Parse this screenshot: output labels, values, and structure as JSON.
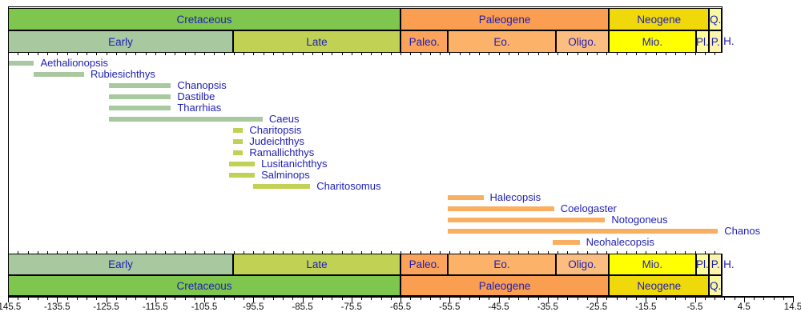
{
  "figure": {
    "background": "#FFFFFF",
    "text_color": "#1E1EB4",
    "axis_color": "#000000",
    "unit": "Ma"
  },
  "chart_data": {
    "type": "bar",
    "subtype": "horizontal-taxon-range-timeline",
    "grid": false,
    "legend": false,
    "x_axis": {
      "min": -145.5,
      "max": 14.5,
      "major_tick_step": 10,
      "minor_tick_step": 2,
      "tick_labels": [
        "-145.5",
        "-135.5",
        "-125.5",
        "-115.5",
        "-105.5",
        "-95.5",
        "-85.5",
        "-75.5",
        "-65.5",
        "-55.5",
        "-45.5",
        "-35.5",
        "-25.5",
        "-15.5",
        "-5.5",
        "4.5",
        "14.5"
      ]
    },
    "periods": [
      {
        "label": "Cretaceous",
        "start": -145.5,
        "end": -65.5,
        "color": "#7FC64E"
      },
      {
        "label": "Paleogene",
        "start": -65.5,
        "end": -23.03,
        "color": "#FA9E52"
      },
      {
        "label": "Neogene",
        "start": -23.03,
        "end": -2.588,
        "color": "#F0D90B"
      },
      {
        "label": "Q.",
        "start": -2.588,
        "end": 0,
        "color": "#F8F8A0"
      }
    ],
    "epochs": [
      {
        "label": "Early",
        "start": -145.5,
        "end": -99.6,
        "color": "#A8C8A0"
      },
      {
        "label": "Late",
        "start": -99.6,
        "end": -65.5,
        "color": "#C1D154"
      },
      {
        "label": "Paleo.",
        "start": -65.5,
        "end": -55.8,
        "color": "#FBA35B"
      },
      {
        "label": "Eo.",
        "start": -55.8,
        "end": -33.9,
        "color": "#FCB269"
      },
      {
        "label": "Oligo.",
        "start": -33.9,
        "end": -23.03,
        "color": "#FCBE80"
      },
      {
        "label": "Mio.",
        "start": -23.03,
        "end": -5.332,
        "color": "#FFFF00"
      },
      {
        "label": "Pl.",
        "start": -5.332,
        "end": -2.588,
        "color": "#FDFD9E"
      },
      {
        "label": "P.",
        "start": -2.588,
        "end": -0.0117,
        "color": "#FCF3AF"
      },
      {
        "label": "H.",
        "start": -0.0117,
        "end": 0,
        "color": "#FEF2E0"
      }
    ],
    "taxa": [
      {
        "name": "Aethalionopsis",
        "start": -145.5,
        "end": -140.2,
        "color": "#A8C8A0"
      },
      {
        "name": "Rubiesichthys",
        "start": -140.2,
        "end": -130.0,
        "color": "#A8C8A0"
      },
      {
        "name": "Chanopsis",
        "start": -125.0,
        "end": -112.3,
        "color": "#A8C8A0"
      },
      {
        "name": "Dastilbe",
        "start": -125.0,
        "end": -112.3,
        "color": "#A8C8A0"
      },
      {
        "name": "Tharrhias",
        "start": -125.0,
        "end": -112.3,
        "color": "#A8C8A0"
      },
      {
        "name": "Caeus",
        "start": -125.0,
        "end": -93.6,
        "color": "#A8C8A0"
      },
      {
        "name": "Charitopsis",
        "start": -99.6,
        "end": -97.6,
        "color": "#C1D154"
      },
      {
        "name": "Judeichthys",
        "start": -99.6,
        "end": -97.6,
        "color": "#C1D154"
      },
      {
        "name": "Ramallichthys",
        "start": -99.6,
        "end": -97.6,
        "color": "#C1D154"
      },
      {
        "name": "Lusitanichthys",
        "start": -100.5,
        "end": -95.2,
        "color": "#C1D154"
      },
      {
        "name": "Salminops",
        "start": -100.5,
        "end": -95.2,
        "color": "#C1D154"
      },
      {
        "name": "Charitosomus",
        "start": -95.5,
        "end": -83.9,
        "color": "#C1D154"
      },
      {
        "name": "Halecopsis",
        "start": -55.8,
        "end": -48.6,
        "color": "#FAAE60"
      },
      {
        "name": "Coelogaster",
        "start": -55.8,
        "end": -34.2,
        "color": "#FAAE60"
      },
      {
        "name": "Notogoneus",
        "start": -55.8,
        "end": -23.8,
        "color": "#FAAE60"
      },
      {
        "name": "Chanos",
        "start": -55.8,
        "end": -0.8,
        "color": "#FAAE60"
      },
      {
        "name": "Neohalecopsis",
        "start": -34.5,
        "end": -29.0,
        "color": "#FAAE60"
      }
    ]
  }
}
